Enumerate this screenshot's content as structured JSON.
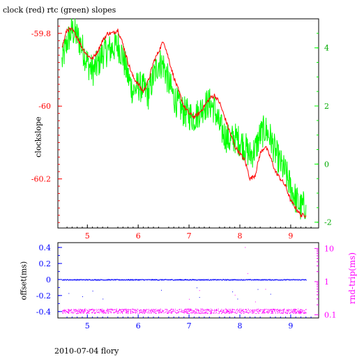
{
  "title": "clock (red) rtc (green) slopes",
  "footer": "2010-07-04 flory",
  "colors": {
    "red": "#ff0000",
    "green": "#00ff00",
    "blue": "#0000ff",
    "magenta": "#ff00ff",
    "axis": "#000000"
  },
  "chart_data": [
    {
      "type": "line",
      "ylabel": "clockslope",
      "x_ticks": [
        "5",
        "6",
        "7",
        "8",
        "9"
      ],
      "y_ticks_left": [
        "-59.8",
        "-60",
        "-60.2"
      ],
      "y_ticks_right": [
        "4",
        "2",
        "0",
        "-2"
      ],
      "xlim": [
        4.42,
        9.55
      ],
      "ylim_left": [
        -60.335,
        -59.76
      ],
      "ylim_right": [
        -2.2,
        5.0
      ],
      "series": [
        {
          "name": "clock",
          "color": "#ff0000",
          "axis": "left",
          "x": [
            4.5,
            4.6,
            4.7,
            4.8,
            4.9,
            5.0,
            5.1,
            5.2,
            5.3,
            5.4,
            5.5,
            5.6,
            5.7,
            5.8,
            5.9,
            6.0,
            6.1,
            6.2,
            6.3,
            6.4,
            6.5,
            6.6,
            6.7,
            6.8,
            6.9,
            7.0,
            7.1,
            7.2,
            7.3,
            7.4,
            7.5,
            7.6,
            7.7,
            7.8,
            7.9,
            8.0,
            8.1,
            8.2,
            8.3,
            8.4,
            8.5,
            8.6,
            8.7,
            8.8,
            8.9,
            9.0,
            9.1,
            9.2,
            9.3
          ],
          "y": [
            -59.84,
            -59.79,
            -59.79,
            -59.81,
            -59.84,
            -59.86,
            -59.87,
            -59.85,
            -59.82,
            -59.8,
            -59.8,
            -59.79,
            -59.83,
            -59.88,
            -59.92,
            -59.94,
            -59.96,
            -59.93,
            -59.88,
            -59.85,
            -59.82,
            -59.87,
            -59.92,
            -59.96,
            -60.0,
            -60.02,
            -60.03,
            -60.02,
            -60.0,
            -59.98,
            -59.97,
            -59.99,
            -60.03,
            -60.07,
            -60.11,
            -60.13,
            -60.15,
            -60.2,
            -60.19,
            -60.13,
            -60.11,
            -60.14,
            -60.18,
            -60.2,
            -60.22,
            -60.26,
            -60.28,
            -60.3,
            -60.3
          ]
        },
        {
          "name": "rtc",
          "color": "#00ff00",
          "axis": "right",
          "x": [
            4.5,
            4.6,
            4.7,
            4.8,
            4.9,
            5.0,
            5.1,
            5.2,
            5.3,
            5.4,
            5.5,
            5.6,
            5.7,
            5.8,
            5.9,
            6.0,
            6.1,
            6.2,
            6.3,
            6.4,
            6.5,
            6.6,
            6.7,
            6.8,
            6.9,
            7.0,
            7.1,
            7.2,
            7.3,
            7.4,
            7.5,
            7.6,
            7.7,
            7.8,
            7.9,
            8.0,
            8.1,
            8.2,
            8.3,
            8.4,
            8.5,
            8.6,
            8.7,
            8.8,
            8.9,
            9.0,
            9.1,
            9.2,
            9.3
          ],
          "y": [
            3.5,
            4.2,
            4.6,
            4.4,
            4.0,
            3.5,
            3.2,
            3.4,
            3.8,
            3.9,
            4.0,
            4.1,
            3.7,
            3.0,
            2.5,
            2.7,
            2.6,
            2.4,
            3.0,
            3.5,
            3.4,
            2.8,
            2.3,
            2.0,
            1.8,
            1.7,
            1.6,
            1.8,
            2.0,
            2.1,
            1.9,
            1.3,
            1.0,
            0.8,
            0.9,
            0.8,
            0.6,
            0.3,
            0.5,
            1.0,
            1.2,
            0.9,
            0.4,
            0.0,
            -0.3,
            -0.8,
            -1.2,
            -1.5,
            -1.4
          ]
        }
      ]
    },
    {
      "type": "scatter",
      "ylabel": "offset(ms)",
      "ylabel_right": "rnd-trip(ms)",
      "x_ticks": [
        "5",
        "6",
        "7",
        "8",
        "9"
      ],
      "y_ticks_left": [
        "0.4",
        "0.2",
        "0",
        "-0.2",
        "-0.4"
      ],
      "y_ticks_right": [
        "10",
        "1",
        "0.1"
      ],
      "xlim": [
        4.42,
        9.55
      ],
      "ylim_left": [
        -0.48,
        0.46
      ],
      "y_right_scale": "log",
      "ylim_right": [
        0.08,
        15
      ],
      "series": [
        {
          "name": "offset",
          "color": "#0000ff",
          "axis": "left",
          "x": [
            4.5,
            5.0,
            5.5,
            6.0,
            6.5,
            7.0,
            7.5,
            8.0,
            8.5,
            9.0,
            9.3
          ],
          "y": [
            0.0,
            0.0,
            0.0,
            0.0,
            0.0,
            0.0,
            0.0,
            0.0,
            0.0,
            0.0,
            0.0
          ],
          "outliers_x": [
            4.63,
            4.9,
            5.1,
            5.3,
            6.45,
            7.15,
            7.2,
            7.85,
            7.95,
            8.35,
            8.6
          ],
          "outliers_y": [
            -0.17,
            -0.21,
            -0.14,
            -0.24,
            -0.13,
            -0.1,
            -0.22,
            -0.15,
            -0.24,
            -0.12,
            -0.18
          ]
        },
        {
          "name": "rnd-trip",
          "color": "#ff00ff",
          "axis": "right",
          "x": [
            4.5,
            5.0,
            5.5,
            6.0,
            6.5,
            7.0,
            7.5,
            8.0,
            8.5,
            9.0,
            9.3
          ],
          "y": [
            0.13,
            0.13,
            0.13,
            0.13,
            0.13,
            0.13,
            0.13,
            0.13,
            0.13,
            0.13,
            0.13
          ],
          "outliers_x": [
            8.1,
            8.15,
            7.0,
            7.2,
            7.9,
            8.3,
            8.5
          ],
          "outliers_y": [
            11.0,
            1.8,
            0.3,
            0.55,
            0.4,
            0.25,
            0.6
          ]
        }
      ]
    }
  ]
}
